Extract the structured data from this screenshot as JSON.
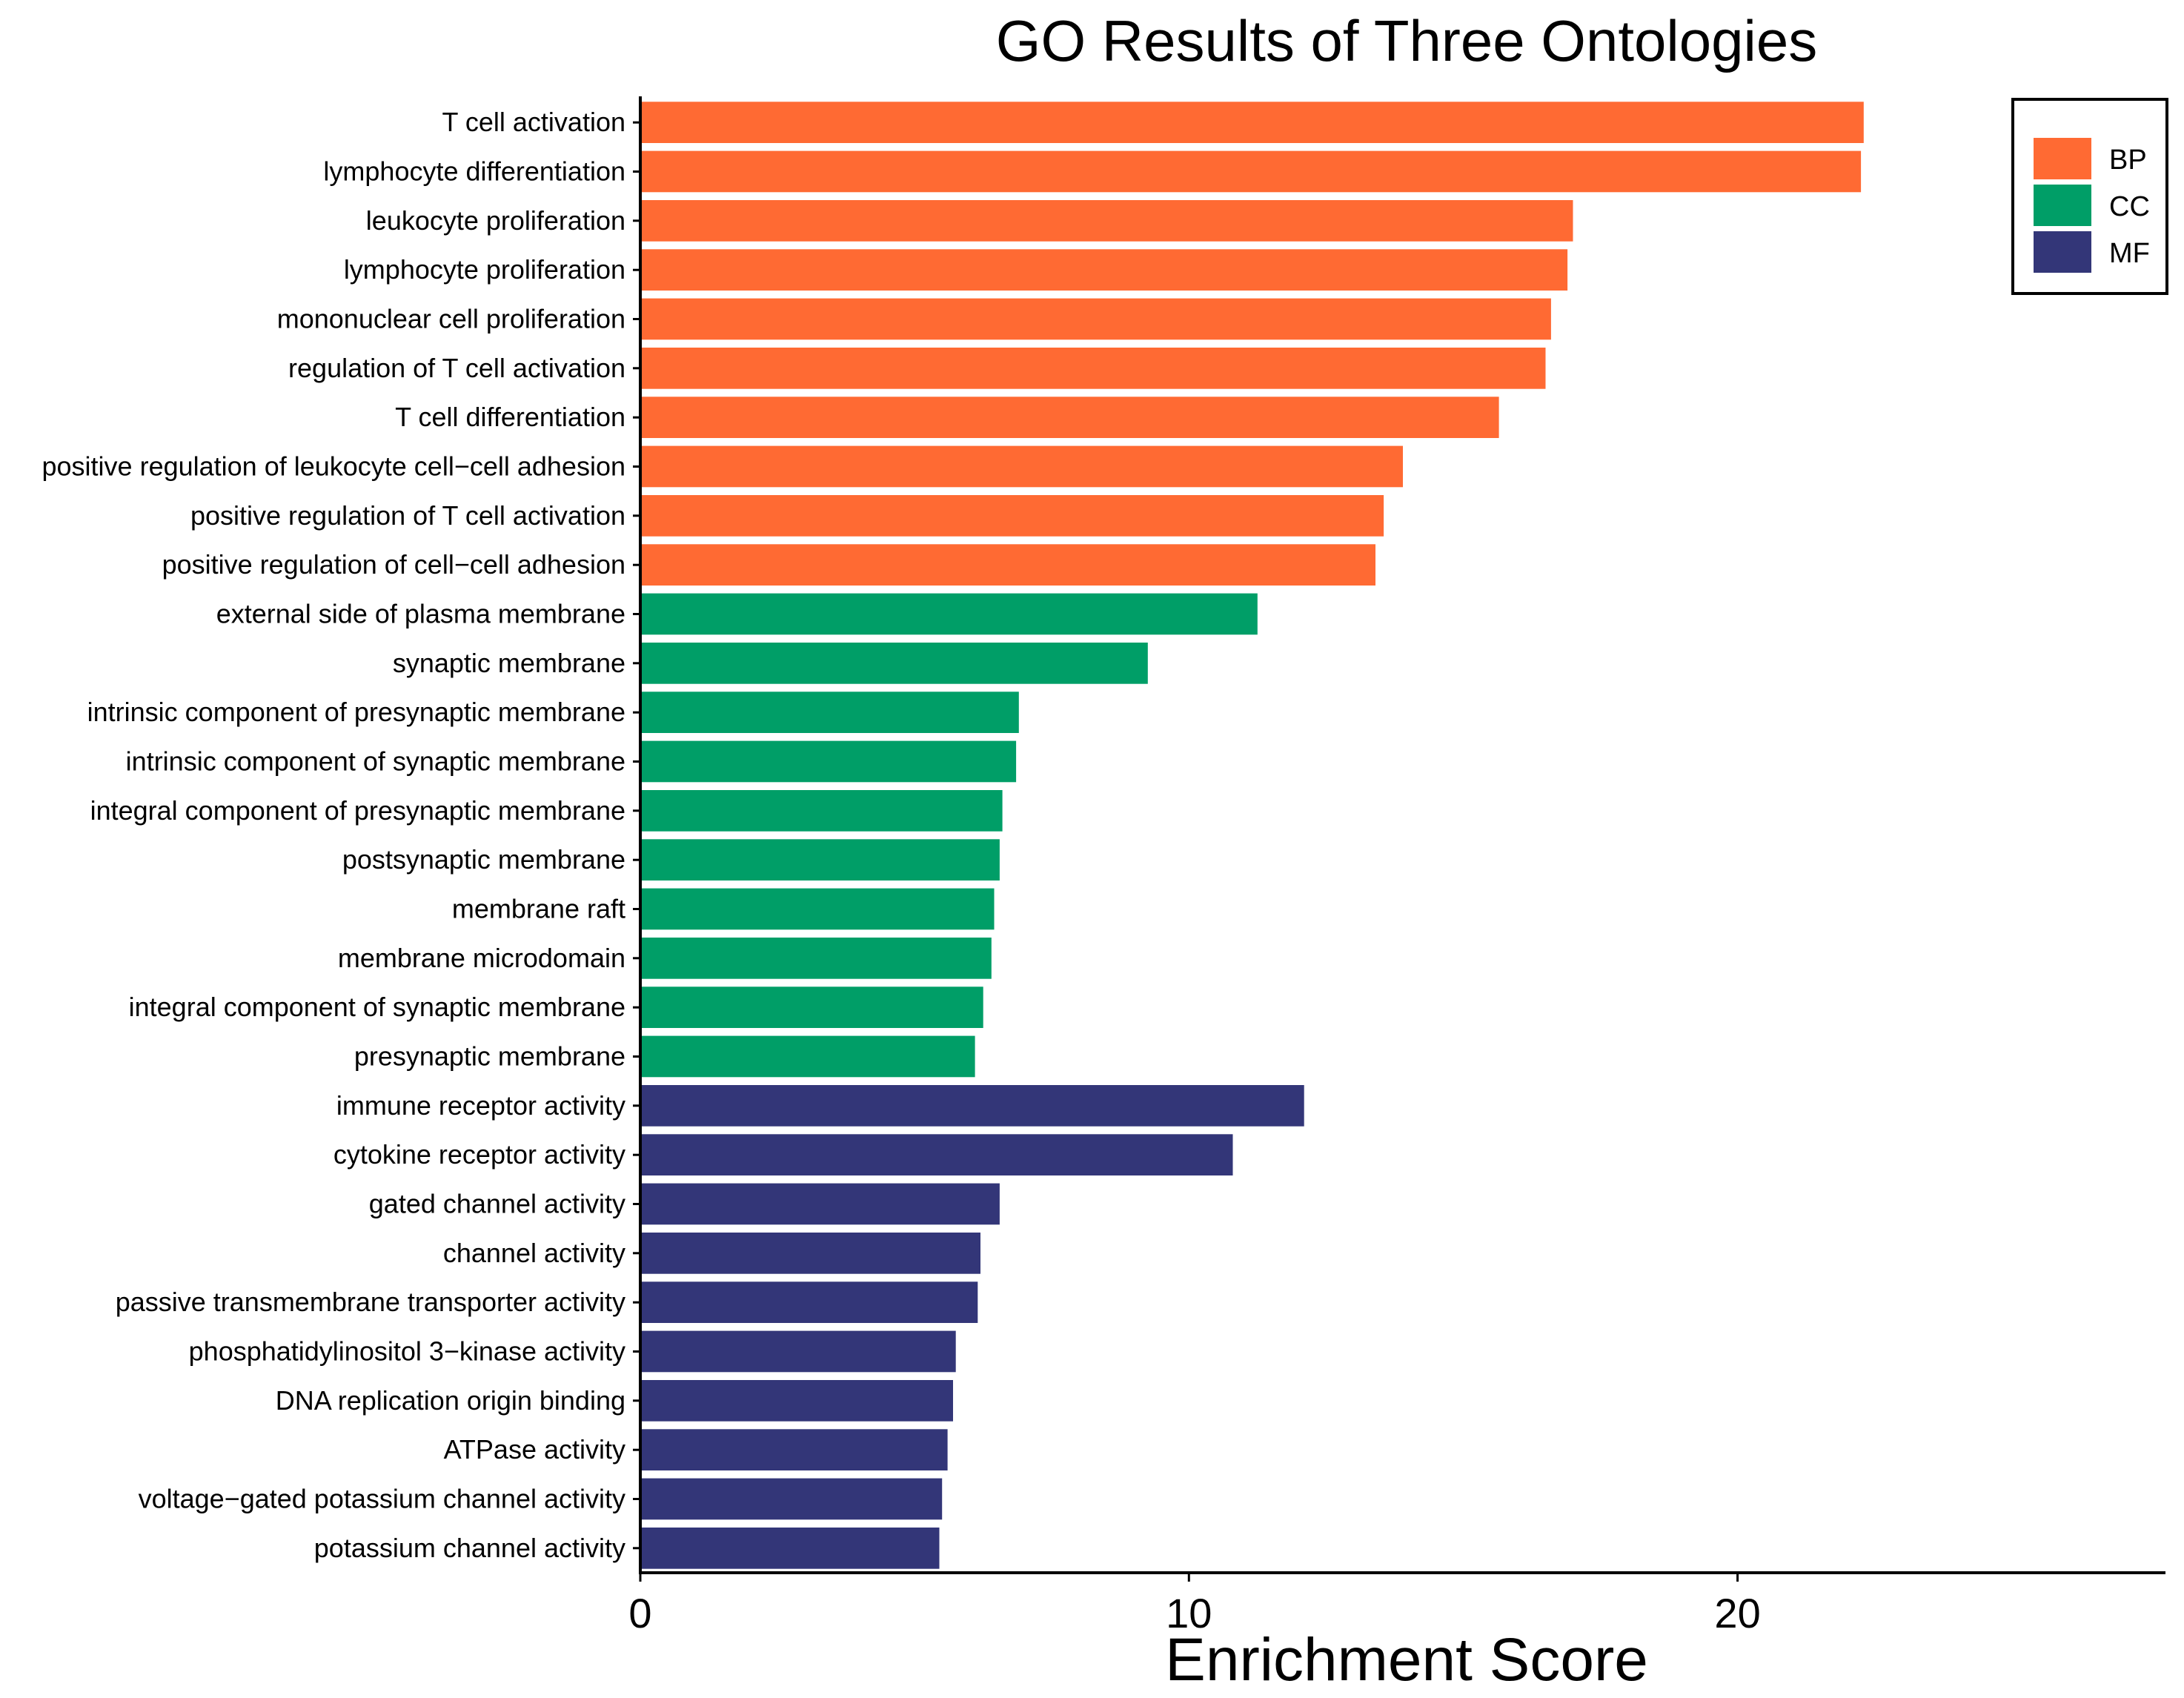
{
  "chart_data": {
    "type": "bar",
    "orientation": "horizontal",
    "title": "GO Results of Three Ontologies",
    "xlabel": "Enrichment Score",
    "ylabel": "",
    "xlim": [
      0,
      27.8
    ],
    "xticks": [
      0,
      10,
      20
    ],
    "xtick_labels": [
      "0",
      "10",
      "20"
    ],
    "grid": false,
    "legend_position": "top-right",
    "legend": [
      {
        "name": "BP",
        "color": "#FF6A33"
      },
      {
        "name": "CC",
        "color": "#009E67"
      },
      {
        "name": "MF",
        "color": "#333678"
      }
    ],
    "categories": [
      "T cell activation",
      "lymphocyte differentiation",
      "leukocyte proliferation",
      "lymphocyte proliferation",
      "mononuclear cell proliferation",
      "regulation of T cell activation",
      "T cell differentiation",
      "positive regulation of leukocyte cell−cell adhesion",
      "positive regulation of T cell activation",
      "positive regulation of cell−cell adhesion",
      "external side of plasma membrane",
      "synaptic membrane",
      "intrinsic component of presynaptic membrane",
      "intrinsic component of synaptic membrane",
      "integral component of presynaptic membrane",
      "postsynaptic membrane",
      "membrane raft",
      "membrane microdomain",
      "integral component of synaptic membrane",
      "presynaptic membrane",
      "immune receptor activity",
      "cytokine receptor activity",
      "gated channel activity",
      "channel activity",
      "passive transmembrane transporter activity",
      "phosphatidylinositol 3−kinase activity",
      "DNA replication origin binding",
      "ATPase activity",
      "voltage−gated potassium channel activity",
      "potassium channel activity"
    ],
    "values": [
      22.3,
      22.25,
      17.0,
      16.9,
      16.6,
      16.5,
      15.65,
      13.9,
      13.55,
      13.4,
      11.25,
      9.25,
      6.9,
      6.85,
      6.6,
      6.55,
      6.45,
      6.4,
      6.25,
      6.1,
      12.1,
      10.8,
      6.55,
      6.2,
      6.15,
      5.75,
      5.7,
      5.6,
      5.5,
      5.45
    ],
    "groups": [
      "BP",
      "BP",
      "BP",
      "BP",
      "BP",
      "BP",
      "BP",
      "BP",
      "BP",
      "BP",
      "CC",
      "CC",
      "CC",
      "CC",
      "CC",
      "CC",
      "CC",
      "CC",
      "CC",
      "CC",
      "MF",
      "MF",
      "MF",
      "MF",
      "MF",
      "MF",
      "MF",
      "MF",
      "MF",
      "MF"
    ]
  }
}
